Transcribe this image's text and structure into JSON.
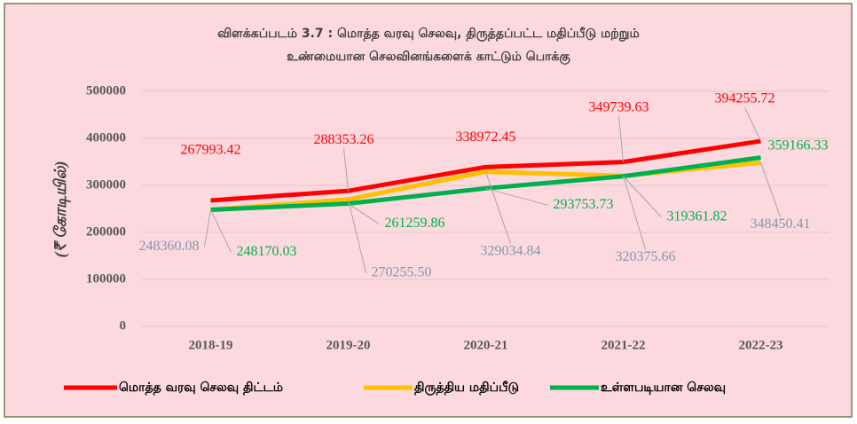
{
  "chart_data": {
    "type": "line",
    "title": [
      "விளக்கப்படம் 3.7 : மொத்த வரவு செலவு, திருத்தப்பட்ட மதிப்பீடு மற்றும்",
      "உண்மையான செலவினங்களைக் காட்டும் பொக்கு"
    ],
    "y_label": "(₹ கோடியில்)",
    "categories": [
      "2018-19",
      "2019-20",
      "2020-21",
      "2021-22",
      "2022-23"
    ],
    "series": [
      {
        "name": "மொத்த வரவு செலவு திட்டம்",
        "color": "#ff0000",
        "label_color": "#ff0000",
        "values": [
          267993.42,
          288353.26,
          338972.45,
          349739.63,
          394255.72
        ],
        "value_labels": [
          "267993.42",
          "288353.26",
          "338972.45",
          "349739.63",
          "394255.72"
        ]
      },
      {
        "name": "திருத்திய மதிப்பீடு",
        "color": "#ffc000",
        "label_color": "#8497b0",
        "values": [
          248360.08,
          270255.5,
          329034.84,
          320375.66,
          348450.41
        ],
        "value_labels": [
          "248360.08",
          "270255.50",
          "329034.84",
          "320375.66",
          "348450.41"
        ]
      },
      {
        "name": "உள்ளபடியான செலவு",
        "color": "#00b050",
        "label_color": "#00b050",
        "values": [
          248170.03,
          261259.86,
          293753.73,
          319361.82,
          359166.33
        ],
        "value_labels": [
          "248170.03",
          "261259.86",
          "293753.73",
          "319361.82",
          "359166.33"
        ]
      }
    ],
    "ylim": [
      0,
      500000
    ],
    "yticks": [
      0,
      100000,
      200000,
      300000,
      400000,
      500000
    ],
    "grid": true,
    "legend": "bottom"
  }
}
